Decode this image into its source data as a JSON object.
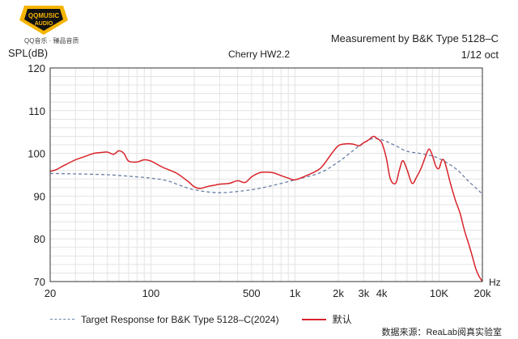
{
  "branding": {
    "logo_line1": "QQMUSIC",
    "logo_line2": "AUDIO",
    "logo_sub": "QQ音乐 · 臻品音质"
  },
  "header": {
    "measurement": "Measurement by B&K Type 5128–C",
    "model": "Cherry HW2.2",
    "octave": "1/12 oct",
    "y_unit": "SPL(dB)",
    "x_unit": "Hz"
  },
  "legend": {
    "target_label": "Target Response for B&K Type 5128–C(2024)",
    "measured_label": "默认"
  },
  "footer": {
    "source": "数据来源：ReaLab阅真实验室"
  },
  "colors": {
    "measured": "#d9232a",
    "target": "#6a7fa6",
    "grid": "#e3e3e3",
    "frame": "#333333"
  },
  "chart_data": {
    "type": "line",
    "title": "Cherry HW2.2",
    "xlabel": "Hz",
    "ylabel": "SPL(dB)",
    "x_scale": "log",
    "xlim": [
      20,
      20000
    ],
    "ylim": [
      70,
      120
    ],
    "x_ticks": [
      {
        "value": 20,
        "label": "20"
      },
      {
        "value": 100,
        "label": "100"
      },
      {
        "value": 500,
        "label": "500"
      },
      {
        "value": 1000,
        "label": "1k"
      },
      {
        "value": 2000,
        "label": "2k"
      },
      {
        "value": 3000,
        "label": "3k"
      },
      {
        "value": 4000,
        "label": "4k"
      },
      {
        "value": 10000,
        "label": "10K"
      },
      {
        "value": 20000,
        "label": "20k"
      }
    ],
    "y_ticks": [
      70,
      80,
      90,
      100,
      110,
      120
    ],
    "grid": true,
    "series": [
      {
        "name": "Target Response for B&K Type 5128–C(2024)",
        "style": "dashed",
        "x": [
          20,
          30,
          50,
          80,
          100,
          130,
          160,
          200,
          300,
          500,
          700,
          1000,
          1500,
          2000,
          2500,
          3000,
          3500,
          4000,
          5000,
          6000,
          8000,
          10000,
          13000,
          16000,
          20000
        ],
        "y": [
          95.3,
          95.2,
          95.0,
          94.5,
          94.2,
          93.6,
          92.5,
          91.5,
          90.8,
          91.5,
          92.5,
          93.8,
          95.5,
          98.0,
          100.5,
          102.5,
          103.5,
          103.2,
          101.8,
          100.5,
          99.8,
          98.8,
          96.5,
          93.5,
          90.5
        ]
      },
      {
        "name": "默认",
        "style": "solid",
        "x": [
          20,
          22,
          25,
          30,
          35,
          40,
          45,
          50,
          55,
          60,
          65,
          70,
          80,
          90,
          100,
          120,
          150,
          180,
          200,
          220,
          250,
          280,
          300,
          350,
          400,
          450,
          500,
          550,
          600,
          700,
          800,
          900,
          1000,
          1200,
          1500,
          1800,
          2000,
          2200,
          2500,
          2800,
          3000,
          3200,
          3500,
          3700,
          4000,
          4300,
          4600,
          5000,
          5300,
          5600,
          6000,
          6500,
          7000,
          7500,
          8000,
          8500,
          9000,
          9500,
          10000,
          10500,
          11000,
          12000,
          13000,
          14000,
          15000,
          16000,
          17000,
          18000,
          19000,
          20000
        ],
        "y": [
          95.8,
          96.2,
          97.2,
          98.5,
          99.3,
          100.0,
          100.2,
          100.3,
          99.8,
          100.6,
          100.0,
          98.2,
          98.0,
          98.5,
          98.2,
          96.8,
          95.4,
          93.5,
          92.2,
          91.8,
          92.3,
          92.6,
          92.8,
          93.0,
          93.6,
          93.2,
          94.5,
          95.3,
          95.6,
          95.5,
          94.8,
          94.2,
          93.8,
          94.8,
          96.5,
          100.0,
          101.8,
          102.2,
          102.2,
          101.8,
          102.5,
          103.0,
          104.0,
          103.5,
          102.5,
          99.0,
          94.0,
          93.0,
          96.0,
          98.3,
          96.2,
          93.0,
          94.5,
          96.5,
          99.0,
          101.0,
          99.5,
          97.0,
          96.5,
          98.5,
          97.8,
          93.0,
          89.0,
          86.0,
          82.0,
          79.0,
          76.0,
          73.0,
          71.2,
          70.0
        ]
      }
    ]
  }
}
